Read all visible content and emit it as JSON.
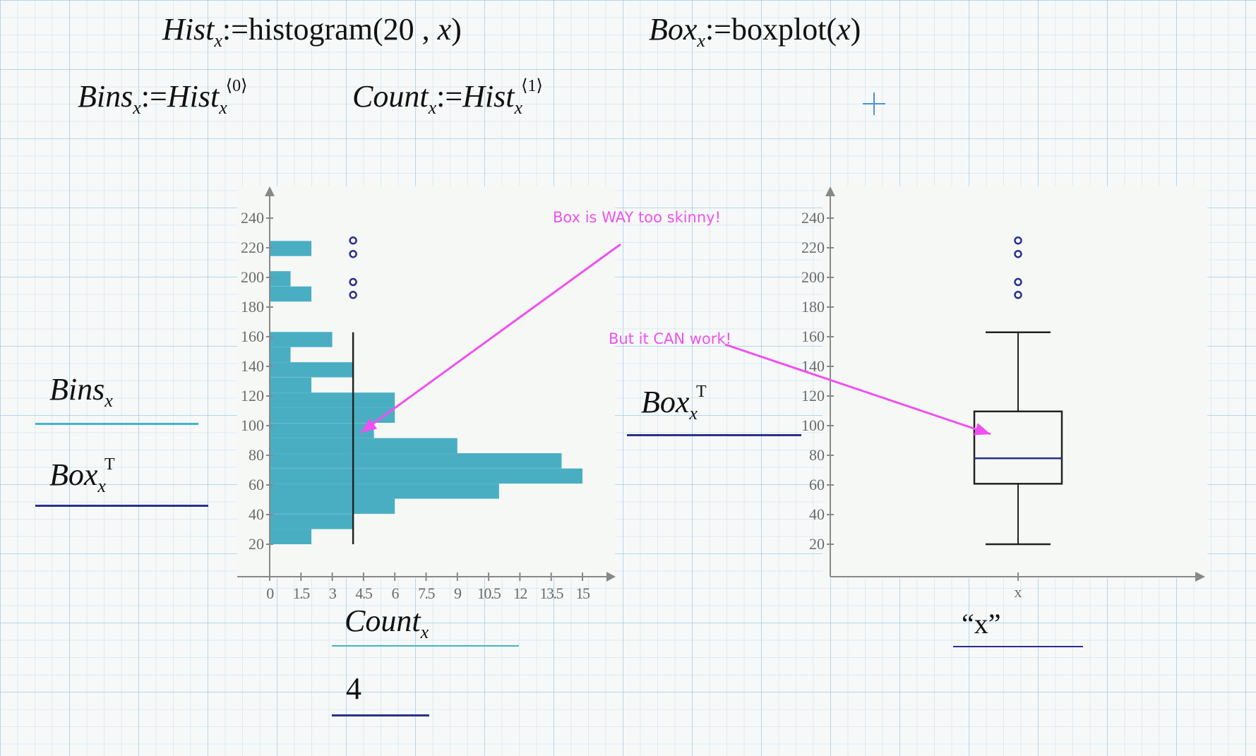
{
  "equations": {
    "hist_def": {
      "name": "Hist",
      "sub": "x",
      "assign": ":=",
      "func": "histogram",
      "args_open": "(",
      "arg1": "20",
      "comma": " , ",
      "arg2": "x",
      "args_close": ")"
    },
    "box_def": {
      "name": "Box",
      "sub": "x",
      "assign": ":=",
      "func": "boxplot",
      "args_open": "(",
      "arg1": "x",
      "args_close": ")"
    },
    "bins_def": {
      "name": "Bins",
      "sub": "x",
      "assign": ":=",
      "rhs": "Hist",
      "rhs_sub": "x",
      "sup": "⟨0⟩"
    },
    "count_def": {
      "name": "Count",
      "sub": "x",
      "assign": ":=",
      "rhs": "Hist",
      "rhs_sub": "x",
      "sup": "⟨1⟩"
    }
  },
  "hist_plot": {
    "y_labels": [
      {
        "name": "Bins",
        "sub": "x"
      },
      {
        "name": "Box",
        "sub": "x",
        "sup": "T"
      }
    ],
    "x_labels": [
      {
        "name": "Count",
        "sub": "x"
      },
      {
        "value": "4"
      }
    ]
  },
  "box_plot": {
    "y_label": {
      "name": "Box",
      "sub": "x",
      "sup": "T"
    },
    "x_label": "“x”"
  },
  "annotations": {
    "note1": "Box is WAY too skinny!",
    "note2": "But it CAN work!",
    "color": "#f050f0"
  },
  "colors": {
    "bars": "#4aaec3",
    "outliers": "#2b2f8f",
    "median": "#2b2f8f",
    "axis": "#888888",
    "bins_trace": "#45b3c9",
    "box_trace": "#2b2f8f"
  },
  "chart_data": [
    {
      "type": "bar",
      "orientation": "horizontal",
      "xlim": [
        0,
        15
      ],
      "ylim": [
        0,
        250
      ],
      "x_ticks": [
        "0",
        "1.5",
        "3",
        "4.5",
        "6",
        "7.5",
        "9",
        "10.5",
        "12",
        "13.5",
        "15"
      ],
      "y_ticks": [
        "20",
        "40",
        "60",
        "80",
        "100",
        "120",
        "140",
        "160",
        "180",
        "200",
        "220",
        "240"
      ],
      "bins": [
        25.1,
        35.3,
        45.6,
        55.8,
        66.0,
        76.3,
        86.5,
        96.7,
        107.0,
        117.2,
        127.4,
        137.7,
        147.9,
        158.1,
        168.4,
        178.6,
        188.8,
        199.1,
        209.3,
        219.5
      ],
      "counts": [
        2,
        4,
        6,
        11,
        15,
        14,
        9,
        5,
        6,
        6,
        2,
        4,
        1,
        3,
        0,
        0,
        2,
        1,
        0,
        2
      ],
      "overlay_box": {
        "x": 4,
        "min": 20,
        "q1": 60.8,
        "median": 78,
        "q3": 109.6,
        "max": 163,
        "outliers": [
          188.2,
          196.9,
          215.8,
          224.9
        ]
      }
    },
    {
      "type": "box",
      "ylim": [
        0,
        250
      ],
      "y_ticks": [
        "20",
        "40",
        "60",
        "80",
        "100",
        "120",
        "140",
        "160",
        "180",
        "200",
        "220",
        "240"
      ],
      "x_ticks": [
        "x"
      ],
      "min": 20,
      "q1": 60.8,
      "median": 78,
      "q3": 109.6,
      "max": 163,
      "outliers": [
        188.2,
        196.9,
        215.8,
        224.9
      ]
    }
  ]
}
